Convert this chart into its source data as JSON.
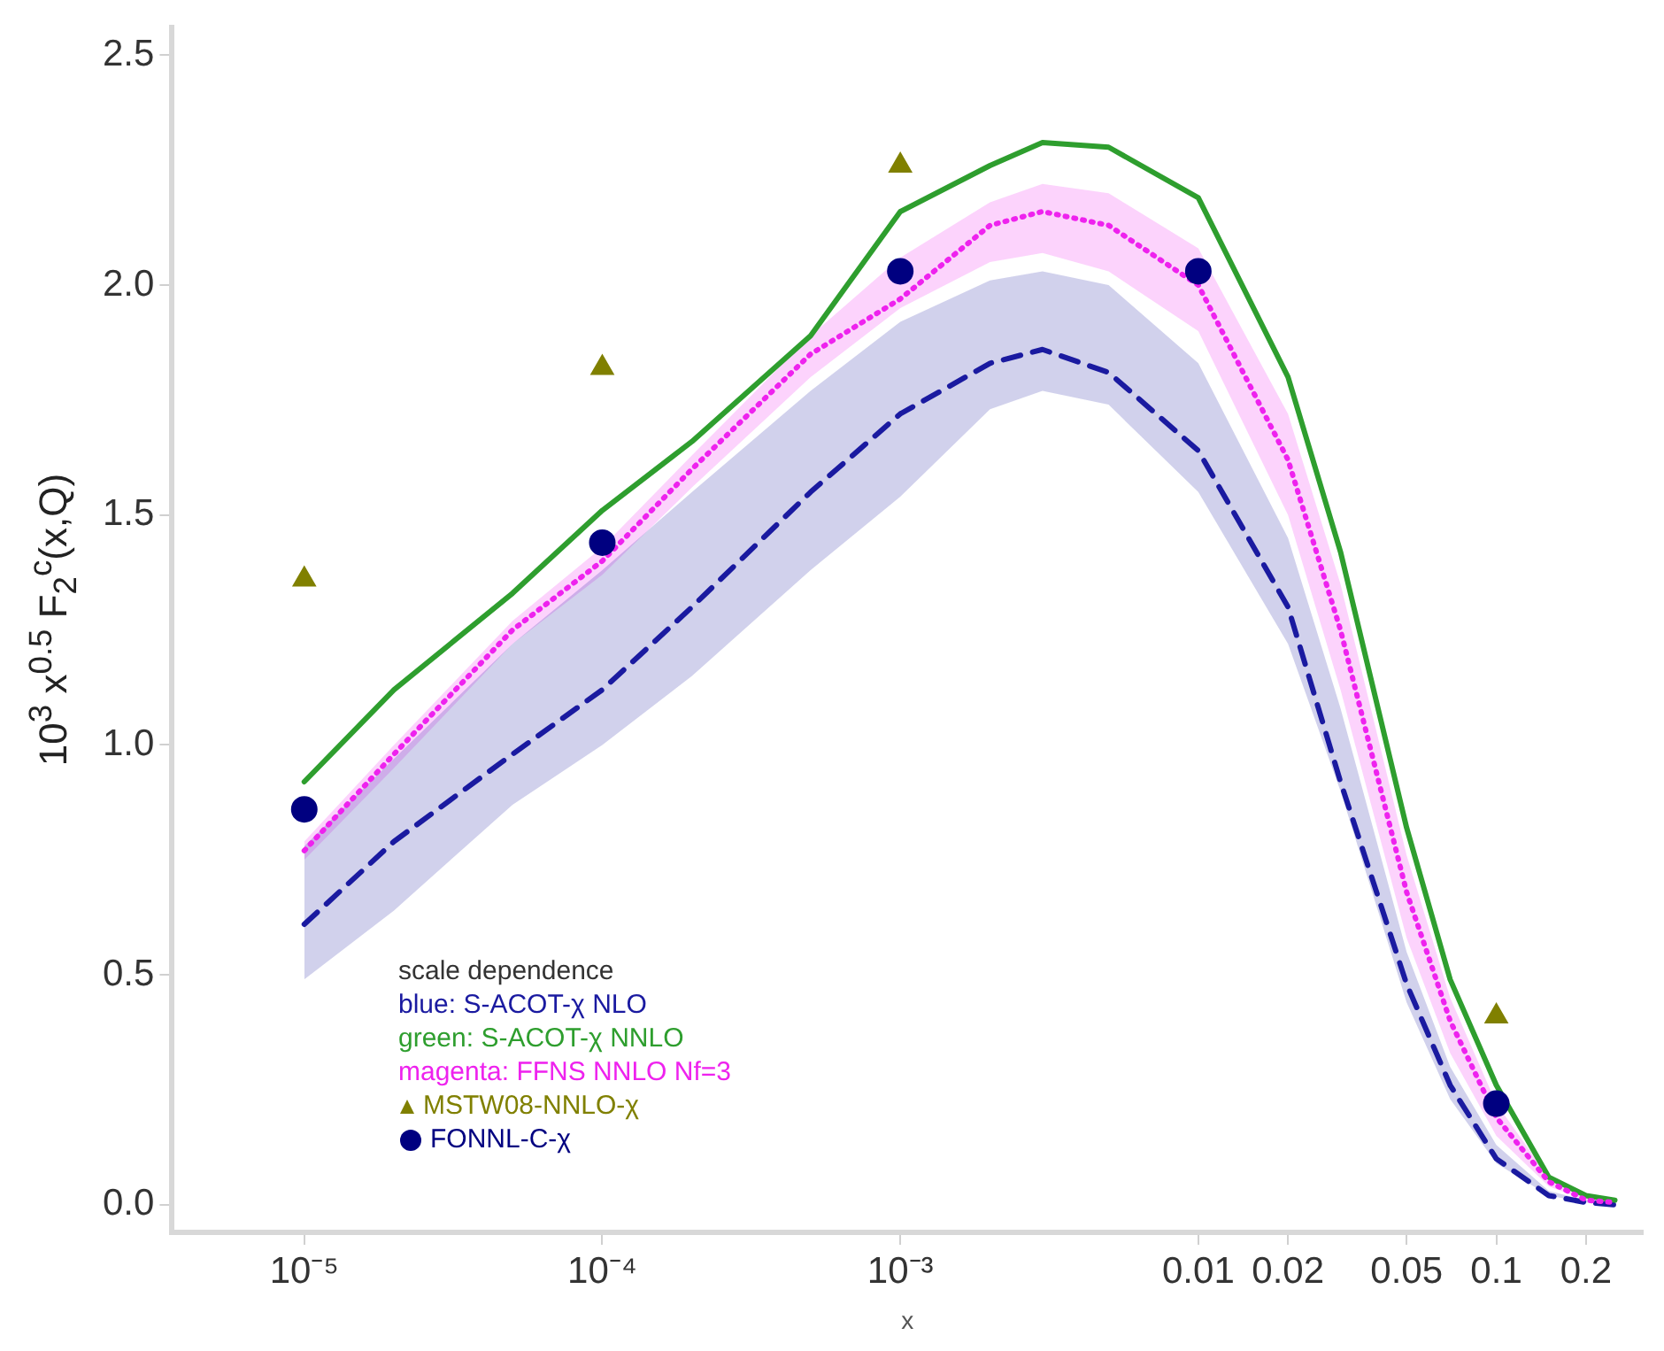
{
  "chart_data": {
    "type": "line",
    "xlabel": "x",
    "ylabel": "10$^{3}$ x$^{0.5}$ F$_{2}$$^{c}$(x,Q)",
    "legend_title": "scale dependence",
    "legend": "bottom left",
    "grid": false,
    "log": "x",
    "x": [
      1e-05,
      2e-05,
      5e-05,
      0.0001,
      0.0002,
      0.0005,
      0.001,
      0.002,
      0.003,
      0.005,
      0.01,
      0.02,
      0.03,
      0.05,
      0.07,
      0.1,
      0.15,
      0.2,
      0.25
    ],
    "xlim": [
      3.6e-06,
      0.31
    ],
    "xticks": [
      {
        "value": 1e-05,
        "label": "10⁻⁵"
      },
      {
        "value": 0.0001,
        "label": "10⁻⁴"
      },
      {
        "value": 0.001,
        "label": "10⁻³"
      },
      0.01,
      0.02,
      0.05,
      0.1,
      0.2
    ],
    "ylim": [
      -0.06,
      2.56
    ],
    "yticks": [
      {
        "value": 0,
        "label": "0.0"
      },
      0.5,
      {
        "value": 1,
        "label": "1.0"
      },
      1.5,
      {
        "value": 2,
        "label": "2.0"
      },
      2.5
    ],
    "series": [
      {
        "name": "blue: S-ACOT-χ NLO",
        "color": "#1a1aa0",
        "line_style": "dashed",
        "marker": "none",
        "values": [
          0.61,
          0.79,
          0.98,
          1.12,
          1.3,
          1.55,
          1.72,
          1.83,
          1.86,
          1.81,
          1.64,
          1.3,
          0.92,
          0.48,
          0.26,
          0.1,
          0.02,
          0.005,
          0
        ],
        "lower": [
          0.49,
          0.64,
          0.87,
          1.0,
          1.15,
          1.38,
          1.54,
          1.73,
          1.77,
          1.74,
          1.55,
          1.22,
          0.9,
          0.44,
          0.23,
          0.09,
          0.02,
          0.005,
          0
        ],
        "upper": [
          0.78,
          0.97,
          1.22,
          1.38,
          1.55,
          1.77,
          1.92,
          2.01,
          2.03,
          2.0,
          1.83,
          1.45,
          1.08,
          0.55,
          0.3,
          0.13,
          0.03,
          0.01,
          0
        ]
      },
      {
        "name": "green: S-ACOT-χ NNLO",
        "color": "#2e9e2e",
        "line_style": "solid",
        "marker": "none",
        "values": [
          0.92,
          1.12,
          1.33,
          1.51,
          1.66,
          1.89,
          2.16,
          2.26,
          2.31,
          2.3,
          2.19,
          1.8,
          1.42,
          0.82,
          0.49,
          0.26,
          0.06,
          0.02,
          0.01
        ]
      },
      {
        "name": "magenta: FFNS NNLO Nf=3",
        "color": "#ee22ee",
        "line_style": "dotted",
        "marker": "none",
        "values": [
          0.77,
          0.98,
          1.25,
          1.4,
          1.6,
          1.85,
          1.97,
          2.13,
          2.16,
          2.13,
          2.0,
          1.62,
          1.25,
          0.68,
          0.4,
          0.19,
          0.05,
          0.01,
          0.005
        ],
        "lower": [
          0.75,
          0.95,
          1.22,
          1.37,
          1.56,
          1.8,
          1.95,
          2.05,
          2.07,
          2.03,
          1.9,
          1.5,
          1.12,
          0.58,
          0.33,
          0.15,
          0.04,
          0.01,
          0
        ],
        "upper": [
          0.79,
          1.0,
          1.27,
          1.43,
          1.63,
          1.89,
          2.06,
          2.18,
          2.22,
          2.2,
          2.08,
          1.72,
          1.35,
          0.76,
          0.45,
          0.22,
          0.06,
          0.015,
          0.005
        ]
      },
      {
        "name": "MSTW08-NNLO-χ",
        "type": "scatter",
        "color": "#808000",
        "marker": "triangle",
        "x": [
          1e-05,
          0.0001,
          0.001,
          0.1
        ],
        "values": [
          1.36,
          1.82,
          2.26,
          0.41
        ]
      },
      {
        "name": "FONNL-C-χ",
        "type": "scatter",
        "color": "#000080",
        "marker": "circle",
        "x": [
          1e-05,
          0.0001,
          0.001,
          0.01,
          0.1
        ],
        "values": [
          0.86,
          1.44,
          2.03,
          2.03,
          0.22
        ]
      }
    ]
  }
}
